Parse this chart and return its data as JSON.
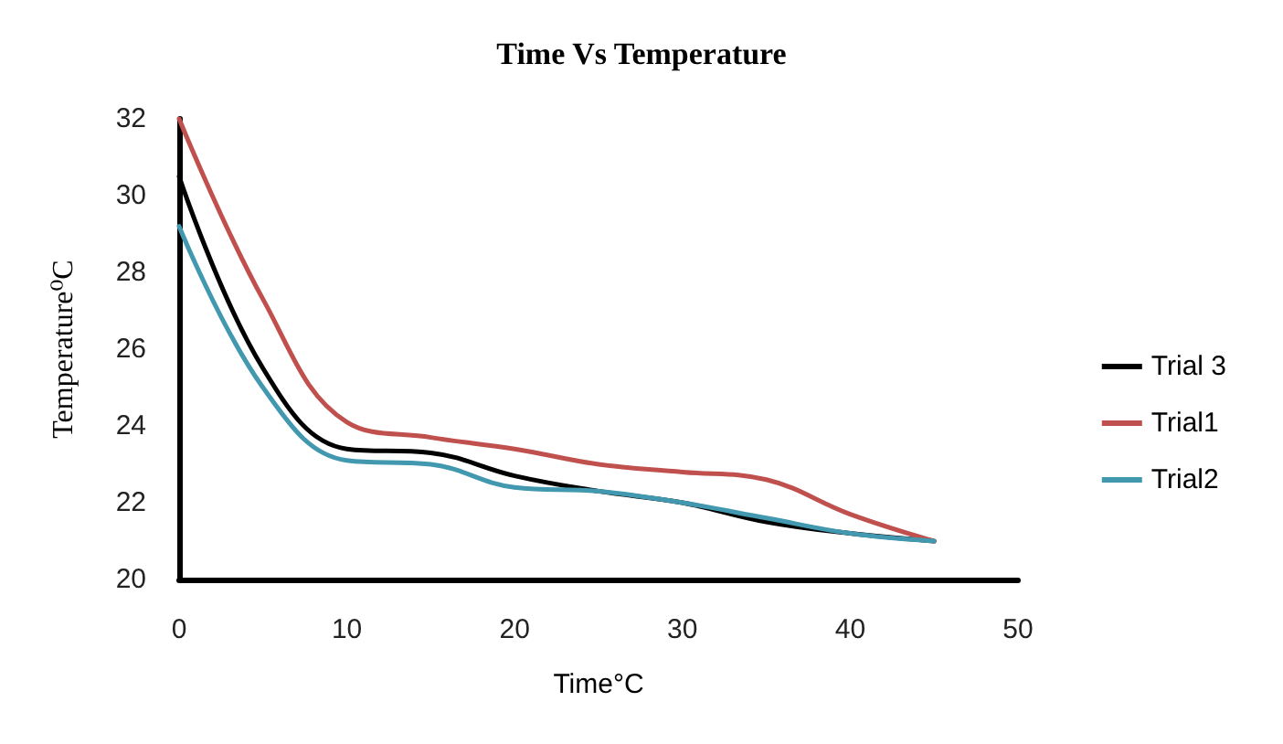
{
  "chart_data": {
    "type": "line",
    "title": "Time Vs Temperature",
    "xlabel": "Time°C",
    "ylabel": "Temperature⁰C",
    "x": [
      0,
      5,
      10,
      15,
      20,
      25,
      30,
      35,
      40,
      45
    ],
    "series": [
      {
        "name": "Trial 3",
        "color": "#000000",
        "values": [
          30.5,
          25.5,
          23.4,
          23.3,
          22.7,
          22.3,
          22.0,
          21.5,
          21.2,
          21.0
        ]
      },
      {
        "name": "Trial1",
        "color": "#c0504d",
        "values": [
          32.0,
          27.3,
          24.1,
          23.7,
          23.4,
          23.0,
          22.8,
          22.6,
          21.7,
          21.0
        ]
      },
      {
        "name": "Trial2",
        "color": "#4198af",
        "values": [
          29.2,
          25.0,
          23.1,
          23.0,
          22.4,
          22.3,
          22.0,
          21.6,
          21.2,
          21.0
        ]
      }
    ],
    "xlim": [
      0,
      50
    ],
    "xticks": [
      0,
      10,
      20,
      30,
      40,
      50
    ],
    "ylim": [
      20,
      32
    ],
    "yticks": [
      20,
      22,
      24,
      26,
      28,
      30,
      32
    ],
    "grid": false,
    "legend": "right",
    "marker": "none",
    "line_style": "solid"
  }
}
